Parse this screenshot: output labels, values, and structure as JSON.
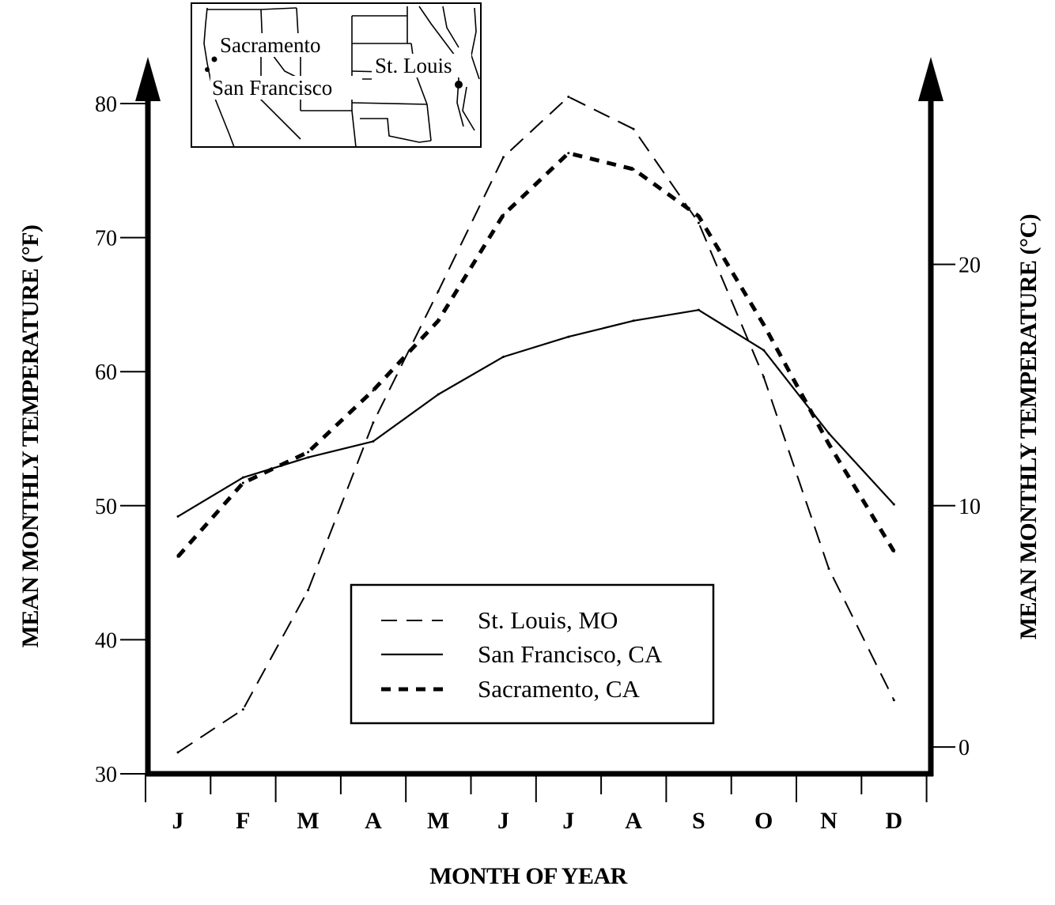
{
  "chart_data": {
    "type": "line",
    "title": "",
    "xlabel": "MONTH OF YEAR",
    "ylabel_left": "MEAN MONTHLY TEMPERATURE (°F)",
    "ylabel_right": "MEAN MONTHLY TEMPERATURE (°C)",
    "categories": [
      "J",
      "F",
      "M",
      "A",
      "M",
      "J",
      "J",
      "A",
      "S",
      "O",
      "N",
      "D"
    ],
    "ylim_left": [
      30,
      80
    ],
    "yticks_left": [
      30,
      40,
      50,
      60,
      70,
      80
    ],
    "yticks_right": [
      0,
      10,
      20
    ],
    "grid": false,
    "legend_position": "center-bottom",
    "series": [
      {
        "name": "St. Louis, MO",
        "style": "long-dash",
        "values": [
          31.6,
          34.8,
          43.7,
          56.2,
          66.0,
          76.0,
          80.5,
          78.1,
          71.1,
          59.6,
          45.3,
          35.5
        ]
      },
      {
        "name": "San Francisco, CA",
        "style": "solid",
        "values": [
          49.2,
          52.1,
          53.6,
          54.8,
          58.3,
          61.1,
          62.6,
          63.8,
          64.6,
          61.6,
          55.4,
          50.1
        ]
      },
      {
        "name": "Sacramento, CA",
        "style": "short-dash-bold",
        "values": [
          46.2,
          51.7,
          54.0,
          58.6,
          63.8,
          71.7,
          76.3,
          75.1,
          71.6,
          63.5,
          54.6,
          46.6
        ]
      }
    ]
  },
  "map": {
    "labels": [
      "Sacramento",
      "San Francisco",
      "St. Louis"
    ]
  }
}
